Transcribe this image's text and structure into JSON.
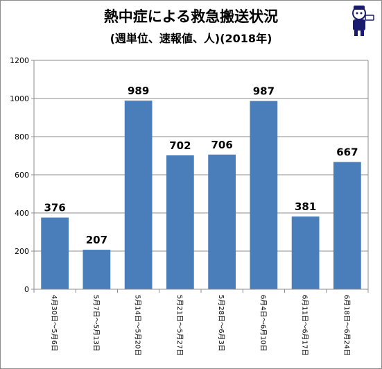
{
  "chart_data": {
    "type": "bar",
    "title": "熱中症による救急搬送状況",
    "subtitle": "(週単位、速報値、人)(2018年)",
    "categories": [
      "4月30日～5月6日",
      "5月7日～5月13日",
      "5月14日～5月20日",
      "5月21日～5月27日",
      "5月28日～6月3日",
      "6月4日～6月10日",
      "6月11日～6月17日",
      "6月18日～6月24日"
    ],
    "values": [
      376,
      207,
      989,
      702,
      706,
      987,
      381,
      667
    ],
    "ylim": [
      0,
      1200
    ],
    "yticks": [
      0,
      200,
      400,
      600,
      800,
      1000,
      1200
    ],
    "grid": true,
    "data_labels": true,
    "colors": {
      "bar": "#4a7ebb",
      "grid": "#8c8c8c",
      "axis": "#8c8c8c"
    }
  }
}
